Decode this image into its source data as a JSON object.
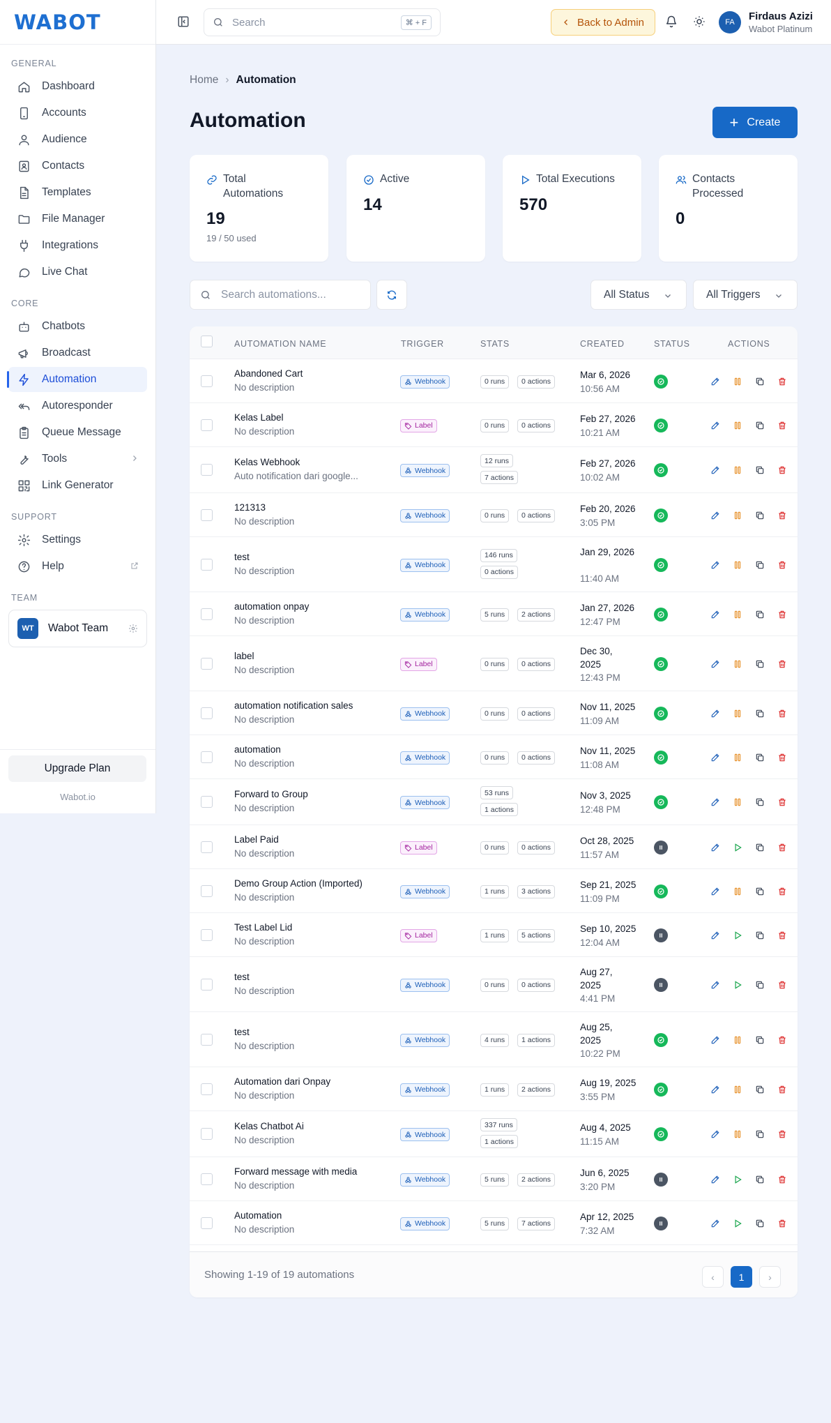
{
  "app": {
    "brand": "WABOT",
    "footer_url": "Wabot.io"
  },
  "sidebar": {
    "sections": [
      "GENERAL",
      "CORE",
      "SUPPORT",
      "TEAM"
    ],
    "general": [
      {
        "label": "Dashboard",
        "icon": "home-icon"
      },
      {
        "label": "Accounts",
        "icon": "phone-icon"
      },
      {
        "label": "Audience",
        "icon": "user-icon"
      },
      {
        "label": "Contacts",
        "icon": "contact-book-icon"
      },
      {
        "label": "Templates",
        "icon": "document-icon"
      },
      {
        "label": "File Manager",
        "icon": "folder-icon"
      },
      {
        "label": "Integrations",
        "icon": "plug-icon"
      },
      {
        "label": "Live Chat",
        "icon": "chat-bubble-icon"
      }
    ],
    "core": [
      {
        "label": "Chatbots",
        "icon": "bot-icon"
      },
      {
        "label": "Broadcast",
        "icon": "megaphone-icon"
      },
      {
        "label": "Automation",
        "icon": "lightning-icon"
      },
      {
        "label": "Autoresponder",
        "icon": "reply-all-icon"
      },
      {
        "label": "Queue Message",
        "icon": "clipboard-icon"
      },
      {
        "label": "Tools",
        "icon": "wrench-icon"
      },
      {
        "label": "Link Generator",
        "icon": "qr-code-icon"
      }
    ],
    "support": [
      {
        "label": "Settings",
        "icon": "gear-icon"
      },
      {
        "label": "Help",
        "icon": "question-circle-icon"
      }
    ],
    "team": {
      "initials": "WT",
      "name": "Wabot Team"
    },
    "upgrade_label": "Upgrade Plan"
  },
  "topbar": {
    "search_placeholder": "Search",
    "search_shortcut": "⌘ + F",
    "back_label": "Back to Admin",
    "user": {
      "initials": "FA",
      "name": "Firdaus Azizi",
      "plan": "Wabot Platinum"
    }
  },
  "breadcrumb": {
    "home": "Home",
    "current": "Automation"
  },
  "page": {
    "title": "Automation",
    "create_label": "Create"
  },
  "stats": [
    {
      "label": "Total Automations",
      "value": "19",
      "sub": "19 / 50 used",
      "icon": "link-icon"
    },
    {
      "label": "Active",
      "value": "14",
      "sub": "",
      "icon": "check-circle-icon"
    },
    {
      "label": "Total Executions",
      "value": "570",
      "sub": "",
      "icon": "play-icon"
    },
    {
      "label": "Contacts Processed",
      "value": "0",
      "sub": "",
      "icon": "users-icon"
    }
  ],
  "filters": {
    "search_placeholder": "Search automations...",
    "status": "All Status",
    "triggers": "All Triggers"
  },
  "table": {
    "headers": [
      "AUTOMATION NAME",
      "TRIGGER",
      "STATS",
      "CREATED",
      "STATUS",
      "ACTIONS"
    ],
    "rows": [
      {
        "name": "Abandoned Cart",
        "desc": "No description",
        "trigger": "Webhook",
        "runs": "0 runs",
        "actions": "0 actions",
        "date": "Mar 6, 2026",
        "time": "10:56 AM",
        "active": true
      },
      {
        "name": "Kelas Label",
        "desc": "No description",
        "trigger": "Label",
        "runs": "0 runs",
        "actions": "0 actions",
        "date": "Feb 27, 2026",
        "time": "10:21 AM",
        "active": true
      },
      {
        "name": "Kelas Webhook",
        "desc": "Auto notification dari google...",
        "trigger": "Webhook",
        "runs": "12 runs",
        "actions": "7 actions",
        "date": "Feb 27, 2026",
        "time": "10:02 AM",
        "active": true
      },
      {
        "name": "121313",
        "desc": "No description",
        "trigger": "Webhook",
        "runs": "0 runs",
        "actions": "0 actions",
        "date": "Feb 20, 2026",
        "time": "3:05 PM",
        "active": true
      },
      {
        "name": "test",
        "desc": "No description",
        "trigger": "Webhook",
        "runs": "146 runs",
        "actions": "0 actions",
        "date": "Jan 29, 2026",
        "time": "11:40 AM",
        "active": true
      },
      {
        "name": "automation onpay",
        "desc": "No description",
        "trigger": "Webhook",
        "runs": "5 runs",
        "actions": "2 actions",
        "date": "Jan 27, 2026",
        "time": "12:47 PM",
        "active": true
      },
      {
        "name": "label",
        "desc": "No description",
        "trigger": "Label",
        "runs": "0 runs",
        "actions": "0 actions",
        "date": "Dec 30, 2025",
        "time": "12:43 PM",
        "active": true
      },
      {
        "name": "automation notification sales",
        "desc": "No description",
        "trigger": "Webhook",
        "runs": "0 runs",
        "actions": "0 actions",
        "date": "Nov 11, 2025",
        "time": "11:09 AM",
        "active": true
      },
      {
        "name": "automation",
        "desc": "No description",
        "trigger": "Webhook",
        "runs": "0 runs",
        "actions": "0 actions",
        "date": "Nov 11, 2025",
        "time": "11:08 AM",
        "active": true
      },
      {
        "name": "Forward to Group",
        "desc": "No description",
        "trigger": "Webhook",
        "runs": "53 runs",
        "actions": "1 actions",
        "date": "Nov 3, 2025",
        "time": "12:48 PM",
        "active": true
      },
      {
        "name": "Label Paid",
        "desc": "No description",
        "trigger": "Label",
        "runs": "0 runs",
        "actions": "0 actions",
        "date": "Oct 28, 2025",
        "time": "11:57 AM",
        "active": false
      },
      {
        "name": "Demo Group Action (Imported)",
        "desc": "No description",
        "trigger": "Webhook",
        "runs": "1 runs",
        "actions": "3 actions",
        "date": "Sep 21, 2025",
        "time": "11:09 PM",
        "active": true
      },
      {
        "name": "Test Label Lid",
        "desc": "No description",
        "trigger": "Label",
        "runs": "1 runs",
        "actions": "5 actions",
        "date": "Sep 10, 2025",
        "time": "12:04 AM",
        "active": false
      },
      {
        "name": "test",
        "desc": "No description",
        "trigger": "Webhook",
        "runs": "0 runs",
        "actions": "0 actions",
        "date": "Aug 27, 2025",
        "time": "4:41 PM",
        "active": false
      },
      {
        "name": "test",
        "desc": "No description",
        "trigger": "Webhook",
        "runs": "4 runs",
        "actions": "1 actions",
        "date": "Aug 25, 2025",
        "time": "10:22 PM",
        "active": true
      },
      {
        "name": "Automation dari Onpay",
        "desc": "No description",
        "trigger": "Webhook",
        "runs": "1 runs",
        "actions": "2 actions",
        "date": "Aug 19, 2025",
        "time": "3:55 PM",
        "active": true
      },
      {
        "name": "Kelas Chatbot Ai",
        "desc": "No description",
        "trigger": "Webhook",
        "runs": "337 runs",
        "actions": "1 actions",
        "date": "Aug 4, 2025",
        "time": "11:15 AM",
        "active": true
      },
      {
        "name": "Forward message with media",
        "desc": "No description",
        "trigger": "Webhook",
        "runs": "5 runs",
        "actions": "2 actions",
        "date": "Jun 6, 2025",
        "time": "3:20 PM",
        "active": false
      },
      {
        "name": "Automation",
        "desc": "No description",
        "trigger": "Webhook",
        "runs": "5 runs",
        "actions": "7 actions",
        "date": "Apr 12, 2025",
        "time": "7:32 AM",
        "active": false
      }
    ],
    "footer_info": "Showing 1-19 of 19 automations",
    "current_page": "1"
  },
  "colors": {
    "primary": "#1769c7",
    "active": "#16b85a",
    "paused": "#4b5563",
    "pause_action": "#e58a1f",
    "delete": "#dc2626",
    "play": "#16a34a"
  }
}
